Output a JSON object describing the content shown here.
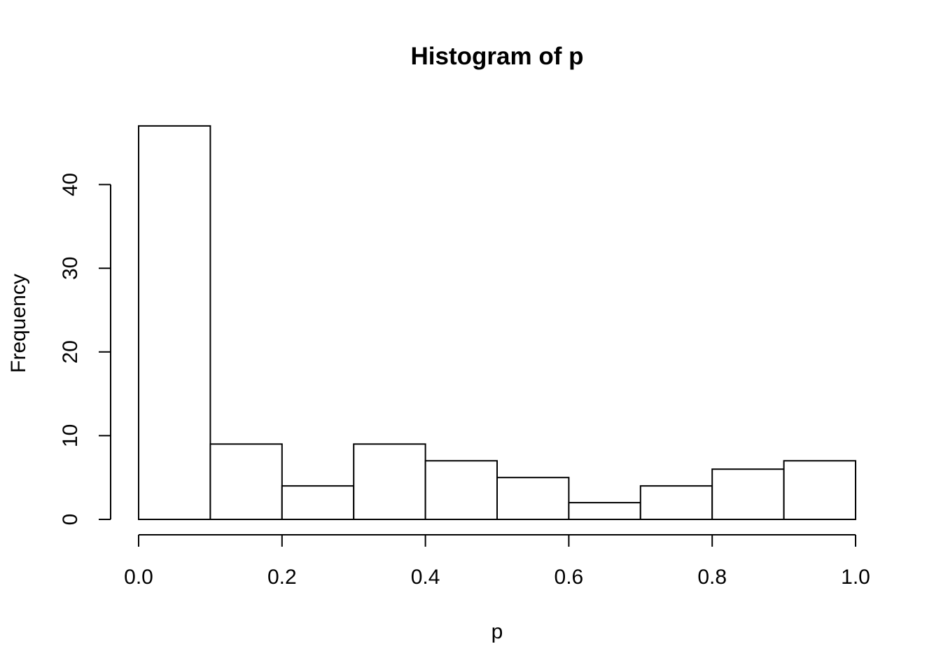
{
  "chart_data": {
    "type": "bar",
    "title": "Histogram of p",
    "xlabel": "p",
    "ylabel": "Frequency",
    "bins": [
      {
        "start": 0.0,
        "end": 0.1,
        "count": 47
      },
      {
        "start": 0.1,
        "end": 0.2,
        "count": 9
      },
      {
        "start": 0.2,
        "end": 0.3,
        "count": 4
      },
      {
        "start": 0.3,
        "end": 0.4,
        "count": 9
      },
      {
        "start": 0.4,
        "end": 0.5,
        "count": 7
      },
      {
        "start": 0.5,
        "end": 0.6,
        "count": 5
      },
      {
        "start": 0.6,
        "end": 0.7,
        "count": 2
      },
      {
        "start": 0.7,
        "end": 0.8,
        "count": 4
      },
      {
        "start": 0.8,
        "end": 0.9,
        "count": 6
      },
      {
        "start": 0.9,
        "end": 1.0,
        "count": 7
      }
    ],
    "xlim": [
      0.0,
      1.0
    ],
    "ylim": [
      0,
      47
    ],
    "x_ticks": [
      0.0,
      0.2,
      0.4,
      0.6,
      0.8,
      1.0
    ],
    "x_tick_labels": [
      "0.0",
      "0.2",
      "0.4",
      "0.6",
      "0.8",
      "1.0"
    ],
    "y_ticks": [
      0,
      10,
      20,
      30,
      40
    ],
    "y_tick_labels": [
      "0",
      "10",
      "20",
      "30",
      "40"
    ],
    "grid": false,
    "legend": "none",
    "bar_fill": "#ffffff",
    "bar_stroke": "#000000"
  }
}
